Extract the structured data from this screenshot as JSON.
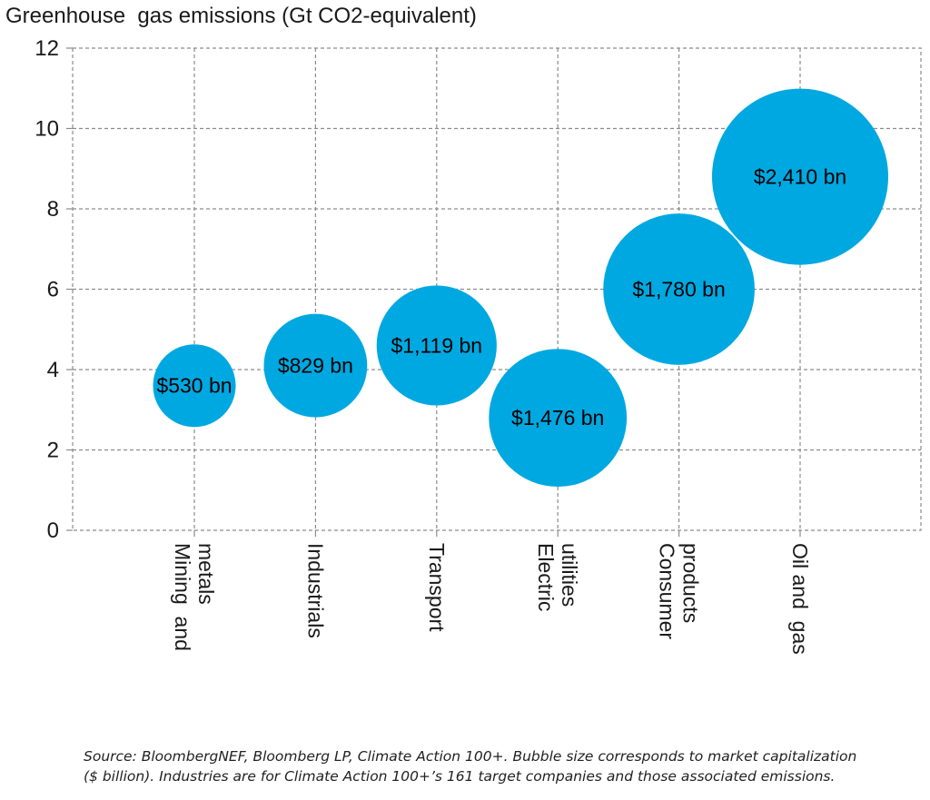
{
  "chart_data": {
    "type": "bubble",
    "title": "",
    "ylabel": "Greenhouse  gas emissions (Gt CO2-equivalent)",
    "xlabel": "",
    "ylim": [
      0,
      12
    ],
    "yticks": [
      0,
      2,
      4,
      6,
      8,
      10,
      12
    ],
    "grid": true,
    "bubble_color": "#00A8E1",
    "categories": [
      [
        "Mining  and",
        "metals"
      ],
      [
        "Industrials"
      ],
      [
        "Transport"
      ],
      [
        "Electric",
        "utilities"
      ],
      [
        "Consumer",
        "products"
      ],
      [
        "Oil and  gas"
      ]
    ],
    "values": [
      3.6,
      4.1,
      4.6,
      2.8,
      6.0,
      8.8
    ],
    "sizes": [
      530,
      829,
      1119,
      1476,
      1780,
      2410
    ],
    "size_unit": "$ billion",
    "bubble_labels": [
      "$530 bn",
      "$829 bn",
      "$1,119 bn",
      "$1,476 bn",
      "$1,780 bn",
      "$2,410 bn"
    ]
  },
  "source": {
    "line1": "Source: BloombergNEF, Bloomberg LP, Climate Action 100+. Bubble size corresponds to market capitalization",
    "line2": "($ billion). Industries are for Climate Action 100+’s 161 target companies and those associated emissions."
  }
}
